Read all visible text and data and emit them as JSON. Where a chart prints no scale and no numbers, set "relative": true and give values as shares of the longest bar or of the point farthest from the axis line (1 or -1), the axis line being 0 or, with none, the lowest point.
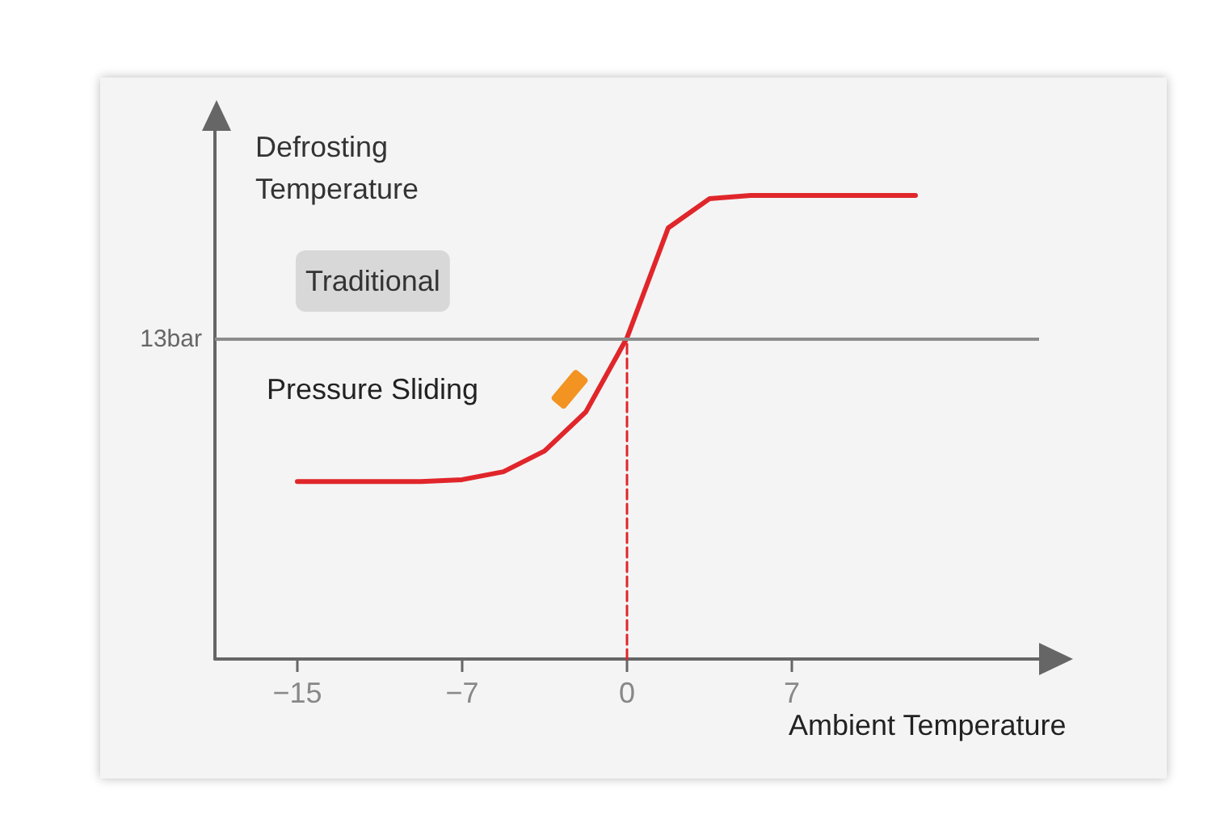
{
  "chart_data": {
    "type": "line",
    "relative": true,
    "xlabel": "Ambient Temperature",
    "ylabel": "Defrosting\nTemperature",
    "tick_labels": "x",
    "grid": false,
    "marker": "none",
    "categories": [
      null,
      null,
      "−15",
      null,
      null,
      null,
      "−7",
      null,
      null,
      null,
      "0",
      null,
      null,
      null,
      "7",
      null,
      null,
      null,
      null,
      null,
      null
    ],
    "series": [
      {
        "color": "#e0262b",
        "line_style": "solid",
        "values": [
          null,
          null,
          0.383,
          0.383,
          0.383,
          0.383,
          0.387,
          0.404,
          0.449,
          0.533,
          0.693,
          0.93,
          0.993,
          1,
          1,
          1,
          1,
          1,
          null,
          null,
          null
        ]
      },
      {
        "color": "#e0262b",
        "line_style": "dashed",
        "x": [
          "0",
          "0"
        ],
        "values": [
          0,
          0.693
        ]
      }
    ],
    "ref_lines": [
      {
        "axis": "y",
        "value": 0.693,
        "label": "13bar",
        "color": "#8c8c8c",
        "line_style": "solid"
      }
    ],
    "annotations": [
      "Traditional",
      "Pressure Sliding"
    ]
  }
}
